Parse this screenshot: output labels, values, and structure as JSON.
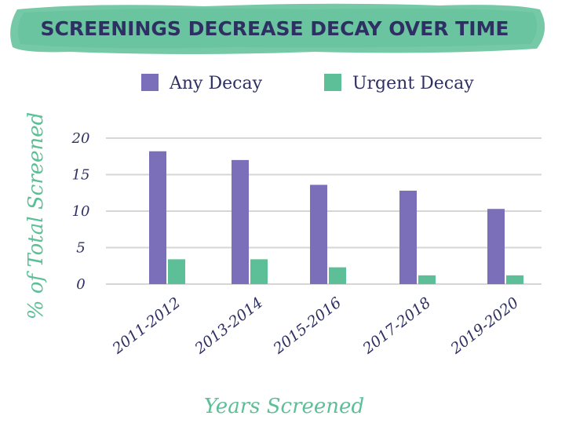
{
  "colors": {
    "banner": "#5dbf97",
    "title": "#2e2f62",
    "any_decay": "#7a6fb8",
    "urgent_decay": "#5dbf97",
    "grid": "#d6d6d6",
    "text": "#2e2f62",
    "axis_title": "#5dbf97"
  },
  "chart_data": {
    "type": "bar",
    "title": "SCREENINGS DECREASE DECAY OVER TIME",
    "xlabel": "Years Screened",
    "ylabel": "% of Total Screened",
    "categories": [
      "2011-2012",
      "2013-2014",
      "2015-2016",
      "2017-2018",
      "2019-2020"
    ],
    "series": [
      {
        "name": "Any Decay",
        "values": [
          18.2,
          17.0,
          13.6,
          12.8,
          10.3
        ]
      },
      {
        "name": "Urgent Decay",
        "values": [
          3.4,
          3.4,
          2.3,
          1.2,
          1.2
        ]
      }
    ],
    "yticks": [
      0,
      5,
      10,
      15,
      20
    ],
    "ylim": [
      0,
      20
    ],
    "legend_position": "top",
    "grid": true
  }
}
